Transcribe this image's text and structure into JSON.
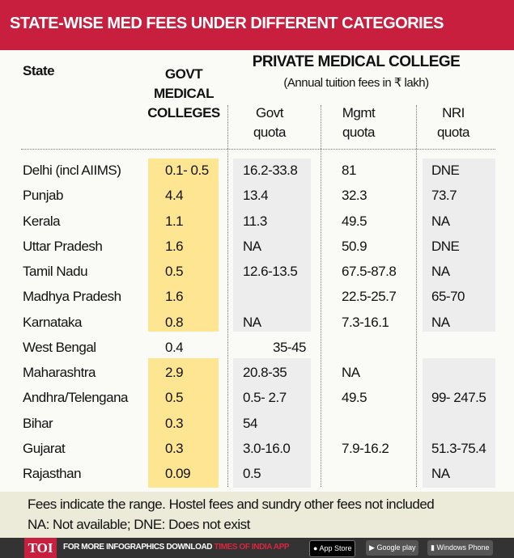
{
  "title": "STATE-WISE MED FEES UNDER DIFFERENT CATEGORIES",
  "header": {
    "state": "State",
    "govt_line1": "GOVT",
    "govt_line2": "MEDICAL",
    "govt_line3": "COLLEGES",
    "private": "PRIVATE MEDICAL COLLEGE",
    "private_sub": "(Annual tuition fees in ₹ lakh)",
    "govt_quota_1": "Govt",
    "govt_quota_2": "quota",
    "mgmt_quota_1": "Mgmt",
    "mgmt_quota_2": "quota",
    "nri_quota_1": "NRI",
    "nri_quota_2": "quota"
  },
  "rows": [
    {
      "state": "Delhi (incl AIIMS)",
      "govt": "0.1- 0.5",
      "govt_quota": "16.2-33.8",
      "mgmt": "81",
      "nri": "DNE"
    },
    {
      "state": "Punjab",
      "govt": "4.4",
      "govt_quota": "13.4",
      "mgmt": "32.3",
      "nri": "73.7"
    },
    {
      "state": "Kerala",
      "govt": "1.1",
      "govt_quota": "11.3",
      "mgmt": "49.5",
      "nri": "NA"
    },
    {
      "state": "Uttar Pradesh",
      "govt": "1.6",
      "govt_quota": "NA",
      "mgmt": "50.9",
      "nri": "DNE"
    },
    {
      "state": "Tamil Nadu",
      "govt": "0.5",
      "govt_quota": "12.6-13.5",
      "mgmt": "67.5-87.8",
      "nri": "NA"
    },
    {
      "state": "Madhya Pradesh",
      "govt": "1.6",
      "govt_quota": "",
      "mgmt": "22.5-25.7",
      "nri": "65-70"
    },
    {
      "state": "Karnataka",
      "govt": "0.8",
      "govt_quota": "NA",
      "mgmt": "7.3-16.1",
      "nri": "NA"
    },
    {
      "state": "West Bengal",
      "govt": "0.4",
      "combined": "35-45",
      "govt_quota": "",
      "mgmt": "",
      "nri": ""
    },
    {
      "state": "Maharashtra",
      "govt": "2.9",
      "govt_quota": "20.8-35",
      "mgmt": "NA",
      "nri": ""
    },
    {
      "state": "Andhra/Telengana",
      "govt": "0.5",
      "govt_quota": "0.5- 2.7",
      "mgmt": "49.5",
      "nri": "99- 247.5"
    },
    {
      "state": "Bihar",
      "govt": "0.3",
      "govt_quota": "54",
      "mgmt": "",
      "nri": ""
    },
    {
      "state": "Gujarat",
      "govt": "0.3",
      "govt_quota": "3.0-16.0",
      "mgmt": "7.9-16.2",
      "nri": "51.3-75.4"
    },
    {
      "state": "Rajasthan",
      "govt": "0.09",
      "govt_quota": "0.5",
      "mgmt": "",
      "nri": "NA"
    }
  ],
  "notes": {
    "line1": "Fees indicate the range. Hostel fees and sundry other fees not included",
    "line2": "NA: Not available; DNE: Does not exist"
  },
  "footer": {
    "logo": "TOI",
    "text": "FOR MORE  INFOGRAPHICS DOWNLOAD",
    "app": "TIMES OF INDIA  APP",
    "app_store": "App Store",
    "google_play": "Google play",
    "windows": "Windows Phone"
  },
  "colors": {
    "title_bg": "#c91f3e",
    "govt_highlight": "#fde591",
    "private_shade": "#ededed",
    "footer_bg": "#333333",
    "app_red": "#d9263f"
  }
}
